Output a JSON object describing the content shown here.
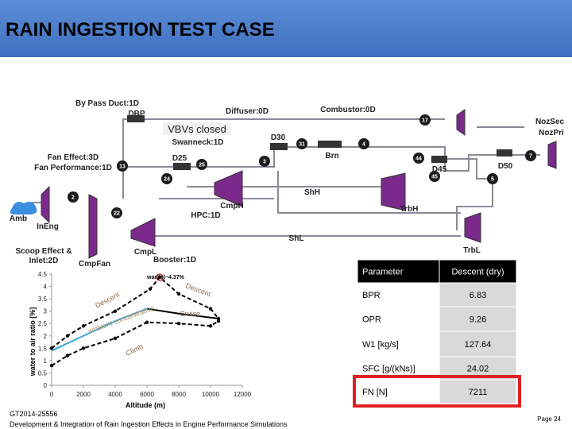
{
  "header": {
    "title": "RAIN INGESTION TEST CASE"
  },
  "diagram": {
    "labels": [
      "By Pass Duct:1D",
      "DBP",
      "Diffuser:0D",
      "Combustor:0D",
      "NozSec",
      "NozPri",
      "VBVs closed",
      "Swanneck:1D",
      "D30",
      "Brn",
      "D45",
      "D50",
      "Fan Effect:3D",
      "Fan Performance:1D",
      "D25",
      "ShH",
      "CmpH",
      "HPC:1D",
      "TrbH",
      "Amb",
      "InEng",
      "ShL",
      "TrbL",
      "Scoop Effect &",
      "Inlet:2D",
      "CmpFan",
      "CmpL",
      "Booster:1D"
    ],
    "stations": [
      "17",
      "31",
      "4",
      "44",
      "45",
      "5",
      "7",
      "13",
      "2",
      "22",
      "25",
      "24",
      "3"
    ]
  },
  "chart_data": {
    "type": "line",
    "x_label": "Altitude (m)",
    "y_label": "water to air ratio [%]",
    "annotation": "war(%)~4.37%",
    "xlim": [
      0,
      12000
    ],
    "xticks": [
      0,
      2000,
      4000,
      6000,
      8000,
      10000,
      12000
    ],
    "ylim": [
      0,
      4.5
    ],
    "yticks": [
      0,
      0.5,
      1,
      1.5,
      2,
      2.5,
      3,
      3.5,
      4,
      4.5
    ],
    "series": [
      {
        "name": "Descent",
        "color": "#000000",
        "dash": true,
        "x": [
          0,
          1000,
          2000,
          4000,
          6200,
          6800,
          8000,
          10000,
          10500
        ],
        "values": [
          1.5,
          2.0,
          2.4,
          3.0,
          3.9,
          4.37,
          3.7,
          3.1,
          2.7
        ]
      },
      {
        "name": "Cruise",
        "color": "#000000",
        "dash": false,
        "x": [
          6000,
          8000,
          10500
        ],
        "values": [
          3.1,
          2.9,
          2.7
        ]
      },
      {
        "name": "ambient concentration",
        "color": "#35a7d6",
        "dash": false,
        "x": [
          0,
          2000,
          4000,
          6000
        ],
        "values": [
          1.4,
          2.0,
          2.6,
          3.1
        ]
      },
      {
        "name": "Climb",
        "color": "#000000",
        "dash": true,
        "x": [
          0,
          1000,
          2000,
          4000,
          6000,
          8000,
          10000,
          10500
        ],
        "values": [
          0.8,
          1.2,
          1.5,
          1.9,
          2.55,
          2.5,
          2.4,
          2.6
        ]
      }
    ]
  },
  "table": {
    "header": [
      "Parameter",
      "Descent (dry)"
    ],
    "rows": [
      [
        "BPR",
        6.83
      ],
      [
        "OPR",
        9.26
      ],
      [
        "W1 [kg/s]",
        127.64
      ],
      [
        "SFC [g/(kNs)]",
        24.02
      ],
      [
        "FN [N]",
        7211
      ]
    ]
  },
  "footer": {
    "code": "GT2014-25556",
    "subtitle": "Development & Integration of Rain Ingestion Effects in Engine Performance Simulations",
    "page": "Page 24"
  }
}
